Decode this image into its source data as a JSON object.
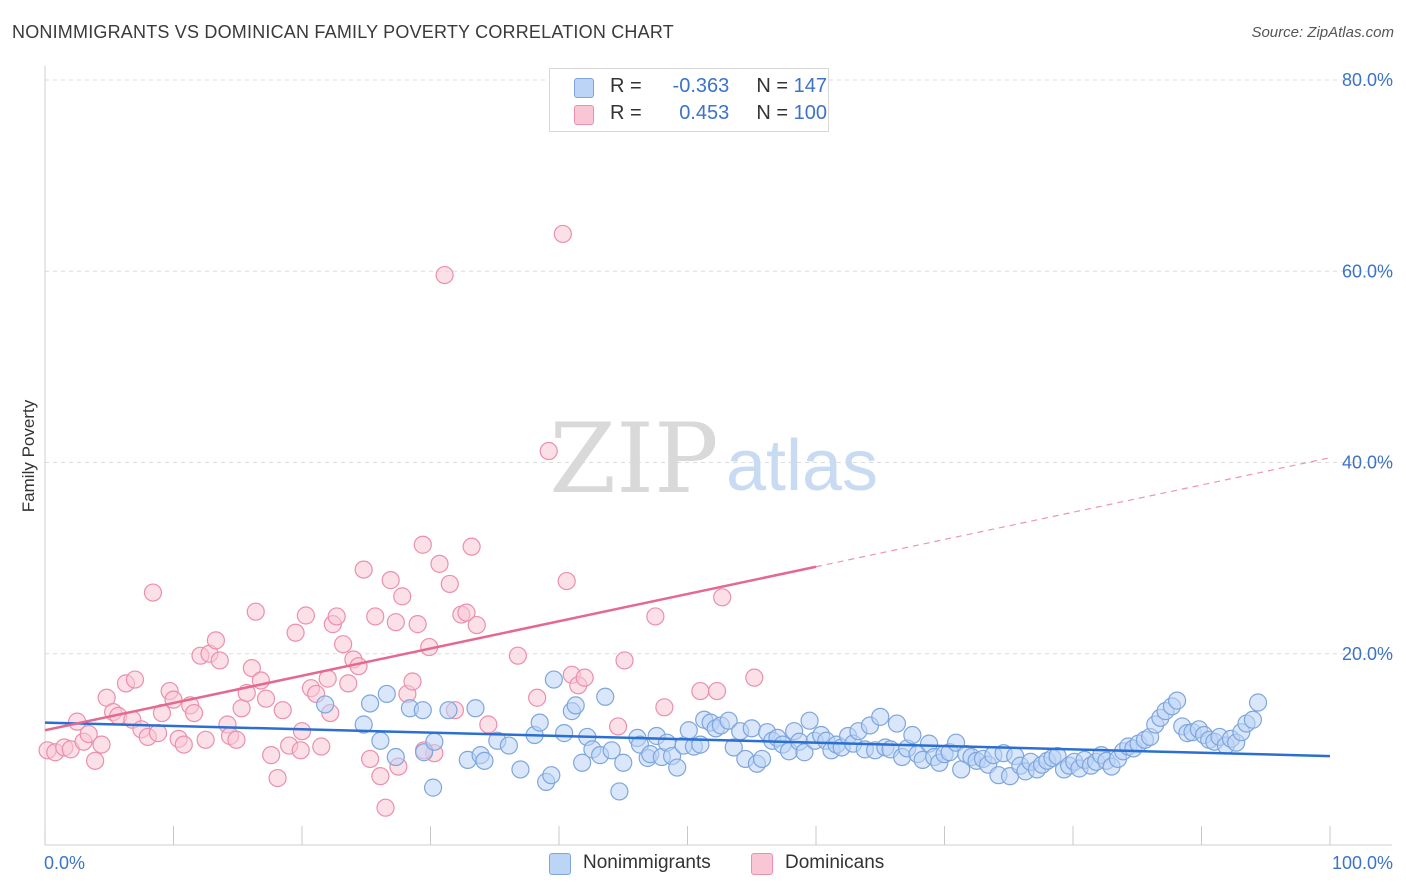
{
  "title": "NONIMMIGRANTS VS DOMINICAN FAMILY POVERTY CORRELATION CHART",
  "source": "Source: ZipAtlas.com",
  "watermark": {
    "zip": "ZIP",
    "atlas": "atlas"
  },
  "legend": {
    "rows": [
      {
        "r_label": "R =",
        "r_value": "-0.363",
        "n_label": "N =",
        "n_value": "147"
      },
      {
        "r_label": "R =",
        "r_value": "0.453",
        "n_label": "N =",
        "n_value": "100"
      }
    ]
  },
  "colors": {
    "blue_fill": "#bcd4f5",
    "blue_stroke": "#7ea6dc",
    "blue_line": "#2b6fd0",
    "pink_fill": "#f9c6d6",
    "pink_stroke": "#eb8fad",
    "pink_line": "#e5688f",
    "axis_label": "#3b73c9",
    "grid": "#dcdcdc"
  },
  "chart_data": {
    "type": "scatter",
    "title": "NONIMMIGRANTS VS DOMINICAN FAMILY POVERTY CORRELATION CHART",
    "xlabel": "",
    "ylabel": "Family Poverty",
    "xlim": [
      0,
      100
    ],
    "ylim": [
      0,
      80
    ],
    "x_tick_labels": [
      "0.0%",
      "100.0%"
    ],
    "y_ticks": [
      20,
      40,
      60,
      80
    ],
    "y_tick_labels": [
      "20.0%",
      "40.0%",
      "60.0%",
      "80.0%"
    ],
    "grid": true,
    "legend_position": "top-center",
    "series": [
      {
        "name": "Nonimmigrants",
        "r": -0.363,
        "n": 147,
        "trend": {
          "x": [
            0,
            100
          ],
          "y": [
            12.8,
            9.3
          ],
          "solid_until": 100
        },
        "points": [
          [
            21.8,
            14.7
          ],
          [
            24.8,
            12.6
          ],
          [
            25.3,
            14.8
          ],
          [
            26.1,
            10.9
          ],
          [
            26.6,
            15.8
          ],
          [
            27.3,
            9.2
          ],
          [
            28.4,
            14.3
          ],
          [
            29.4,
            14.1
          ],
          [
            29.5,
            9.7
          ],
          [
            30.2,
            6.0
          ],
          [
            30.3,
            10.8
          ],
          [
            31.4,
            14.1
          ],
          [
            32.9,
            8.9
          ],
          [
            33.5,
            14.3
          ],
          [
            33.9,
            9.4
          ],
          [
            34.2,
            8.8
          ],
          [
            35.2,
            10.9
          ],
          [
            36.1,
            10.4
          ],
          [
            37.0,
            7.9
          ],
          [
            38.1,
            11.5
          ],
          [
            38.5,
            12.8
          ],
          [
            39.0,
            6.6
          ],
          [
            39.4,
            7.3
          ],
          [
            39.6,
            17.3
          ],
          [
            40.4,
            11.7
          ],
          [
            41.0,
            14.0
          ],
          [
            41.3,
            14.6
          ],
          [
            41.8,
            8.6
          ],
          [
            42.2,
            11.3
          ],
          [
            42.6,
            10.0
          ],
          [
            43.2,
            9.4
          ],
          [
            43.6,
            15.5
          ],
          [
            44.1,
            9.9
          ],
          [
            44.7,
            5.6
          ],
          [
            45.0,
            8.6
          ],
          [
            46.1,
            11.2
          ],
          [
            46.3,
            10.5
          ],
          [
            46.9,
            9.1
          ],
          [
            47.1,
            9.5
          ],
          [
            47.6,
            11.4
          ],
          [
            48.0,
            9.2
          ],
          [
            48.4,
            10.7
          ],
          [
            48.8,
            9.3
          ],
          [
            49.2,
            8.1
          ],
          [
            49.7,
            10.4
          ],
          [
            50.1,
            12.0
          ],
          [
            50.5,
            10.3
          ],
          [
            51.0,
            10.5
          ],
          [
            51.3,
            13.1
          ],
          [
            51.8,
            12.8
          ],
          [
            52.2,
            12.2
          ],
          [
            52.6,
            12.5
          ],
          [
            53.2,
            13.0
          ],
          [
            53.6,
            10.2
          ],
          [
            54.1,
            11.9
          ],
          [
            54.5,
            9.0
          ],
          [
            55.0,
            12.2
          ],
          [
            55.4,
            8.5
          ],
          [
            55.8,
            9.0
          ],
          [
            56.2,
            11.8
          ],
          [
            56.6,
            10.9
          ],
          [
            57.0,
            11.2
          ],
          [
            57.4,
            10.5
          ],
          [
            57.9,
            9.8
          ],
          [
            58.3,
            11.9
          ],
          [
            58.7,
            10.8
          ],
          [
            59.1,
            9.7
          ],
          [
            59.5,
            13.0
          ],
          [
            59.9,
            10.9
          ],
          [
            60.4,
            11.5
          ],
          [
            60.8,
            10.9
          ],
          [
            61.2,
            9.9
          ],
          [
            61.6,
            10.5
          ],
          [
            62.0,
            10.2
          ],
          [
            62.5,
            11.4
          ],
          [
            62.9,
            10.6
          ],
          [
            63.3,
            11.9
          ],
          [
            63.8,
            10.0
          ],
          [
            64.2,
            12.5
          ],
          [
            64.6,
            9.9
          ],
          [
            65.0,
            13.4
          ],
          [
            65.4,
            10.2
          ],
          [
            65.8,
            10.0
          ],
          [
            66.3,
            12.7
          ],
          [
            66.7,
            9.2
          ],
          [
            67.1,
            10.1
          ],
          [
            67.5,
            11.5
          ],
          [
            67.9,
            9.5
          ],
          [
            68.3,
            8.9
          ],
          [
            68.8,
            10.6
          ],
          [
            69.2,
            9.2
          ],
          [
            69.6,
            8.6
          ],
          [
            70.0,
            9.5
          ],
          [
            70.4,
            9.7
          ],
          [
            70.9,
            10.7
          ],
          [
            71.3,
            7.9
          ],
          [
            71.7,
            9.5
          ],
          [
            72.1,
            9.2
          ],
          [
            72.5,
            8.8
          ],
          [
            73.0,
            9.0
          ],
          [
            73.4,
            8.4
          ],
          [
            73.8,
            9.4
          ],
          [
            74.2,
            7.3
          ],
          [
            74.6,
            9.6
          ],
          [
            75.1,
            7.2
          ],
          [
            75.5,
            9.3
          ],
          [
            75.9,
            8.3
          ],
          [
            76.3,
            7.7
          ],
          [
            76.7,
            8.7
          ],
          [
            77.2,
            7.9
          ],
          [
            77.6,
            8.4
          ],
          [
            78.0,
            8.8
          ],
          [
            78.4,
            9.1
          ],
          [
            78.8,
            9.3
          ],
          [
            79.3,
            7.9
          ],
          [
            79.7,
            8.3
          ],
          [
            80.1,
            8.7
          ],
          [
            80.5,
            8.0
          ],
          [
            80.9,
            8.9
          ],
          [
            81.4,
            8.3
          ],
          [
            81.8,
            8.7
          ],
          [
            82.2,
            9.4
          ],
          [
            82.6,
            8.8
          ],
          [
            83.0,
            8.2
          ],
          [
            83.5,
            9.0
          ],
          [
            83.9,
            9.8
          ],
          [
            84.3,
            10.3
          ],
          [
            84.7,
            10.1
          ],
          [
            85.1,
            10.6
          ],
          [
            85.6,
            11.0
          ],
          [
            86.0,
            11.3
          ],
          [
            86.4,
            12.6
          ],
          [
            86.8,
            13.3
          ],
          [
            87.2,
            14.0
          ],
          [
            87.7,
            14.5
          ],
          [
            88.1,
            15.1
          ],
          [
            88.5,
            12.4
          ],
          [
            88.9,
            11.7
          ],
          [
            89.3,
            11.8
          ],
          [
            89.8,
            12.1
          ],
          [
            90.2,
            11.5
          ],
          [
            90.6,
            11.0
          ],
          [
            91.0,
            10.8
          ],
          [
            91.4,
            11.3
          ],
          [
            91.9,
            10.4
          ],
          [
            92.3,
            11.1
          ],
          [
            92.7,
            10.7
          ],
          [
            93.1,
            11.8
          ],
          [
            93.5,
            12.7
          ],
          [
            94.0,
            13.1
          ],
          [
            94.4,
            14.9
          ]
        ]
      },
      {
        "name": "Dominicans",
        "r": 0.453,
        "n": 100,
        "trend": {
          "x": [
            0,
            100
          ],
          "y": [
            12.0,
            40.5
          ],
          "solid_until": 60
        },
        "points": [
          [
            0.2,
            9.9
          ],
          [
            0.8,
            9.7
          ],
          [
            1.5,
            10.2
          ],
          [
            2.0,
            10.0
          ],
          [
            2.5,
            12.9
          ],
          [
            3.0,
            10.8
          ],
          [
            3.4,
            11.6
          ],
          [
            3.9,
            8.8
          ],
          [
            4.4,
            10.5
          ],
          [
            4.8,
            15.4
          ],
          [
            5.3,
            13.9
          ],
          [
            5.7,
            13.5
          ],
          [
            6.3,
            16.9
          ],
          [
            6.8,
            13.1
          ],
          [
            7.0,
            17.3
          ],
          [
            7.5,
            12.1
          ],
          [
            8.0,
            11.3
          ],
          [
            8.4,
            26.4
          ],
          [
            8.8,
            11.7
          ],
          [
            9.1,
            13.8
          ],
          [
            9.7,
            16.1
          ],
          [
            10.0,
            15.2
          ],
          [
            10.4,
            11.1
          ],
          [
            10.8,
            10.5
          ],
          [
            11.3,
            14.6
          ],
          [
            11.6,
            13.8
          ],
          [
            12.1,
            19.8
          ],
          [
            12.5,
            11.0
          ],
          [
            12.8,
            20.0
          ],
          [
            13.3,
            21.4
          ],
          [
            13.6,
            19.3
          ],
          [
            14.2,
            12.6
          ],
          [
            14.4,
            11.4
          ],
          [
            14.9,
            11.0
          ],
          [
            15.3,
            14.3
          ],
          [
            15.7,
            15.9
          ],
          [
            16.1,
            18.5
          ],
          [
            16.4,
            24.4
          ],
          [
            16.8,
            17.2
          ],
          [
            17.2,
            15.3
          ],
          [
            17.6,
            9.4
          ],
          [
            18.1,
            7.0
          ],
          [
            18.5,
            14.1
          ],
          [
            19.0,
            10.4
          ],
          [
            19.5,
            22.2
          ],
          [
            19.9,
            9.9
          ],
          [
            20.3,
            24.0
          ],
          [
            20.7,
            16.4
          ],
          [
            21.1,
            15.8
          ],
          [
            21.5,
            10.3
          ],
          [
            22.0,
            17.4
          ],
          [
            22.4,
            23.1
          ],
          [
            22.7,
            23.9
          ],
          [
            23.2,
            21.0
          ],
          [
            23.6,
            16.9
          ],
          [
            24.0,
            19.4
          ],
          [
            24.4,
            18.7
          ],
          [
            24.8,
            28.8
          ],
          [
            25.3,
            9.0
          ],
          [
            25.7,
            23.9
          ],
          [
            26.1,
            7.2
          ],
          [
            26.5,
            3.9
          ],
          [
            26.9,
            27.7
          ],
          [
            27.3,
            23.3
          ],
          [
            27.8,
            26.0
          ],
          [
            28.2,
            15.8
          ],
          [
            28.6,
            17.1
          ],
          [
            29.0,
            23.1
          ],
          [
            29.4,
            31.4
          ],
          [
            29.9,
            20.7
          ],
          [
            30.3,
            9.6
          ],
          [
            30.7,
            29.4
          ],
          [
            31.1,
            59.6
          ],
          [
            31.5,
            27.3
          ],
          [
            31.9,
            14.1
          ],
          [
            32.4,
            24.1
          ],
          [
            32.8,
            24.3
          ],
          [
            33.2,
            31.2
          ],
          [
            33.6,
            23.0
          ],
          [
            40.3,
            63.9
          ],
          [
            39.2,
            41.2
          ],
          [
            40.6,
            27.6
          ],
          [
            41.0,
            17.8
          ],
          [
            41.5,
            16.7
          ],
          [
            42.0,
            17.5
          ],
          [
            44.6,
            12.4
          ],
          [
            45.1,
            19.3
          ],
          [
            47.5,
            23.9
          ],
          [
            48.2,
            14.4
          ],
          [
            51.0,
            16.1
          ],
          [
            52.3,
            16.1
          ],
          [
            52.7,
            25.9
          ],
          [
            55.2,
            17.5
          ],
          [
            36.8,
            19.8
          ],
          [
            34.5,
            12.6
          ],
          [
            27.5,
            8.2
          ],
          [
            38.3,
            15.4
          ],
          [
            29.5,
            9.9
          ],
          [
            22.2,
            13.8
          ],
          [
            20.0,
            11.9
          ]
        ]
      }
    ]
  }
}
